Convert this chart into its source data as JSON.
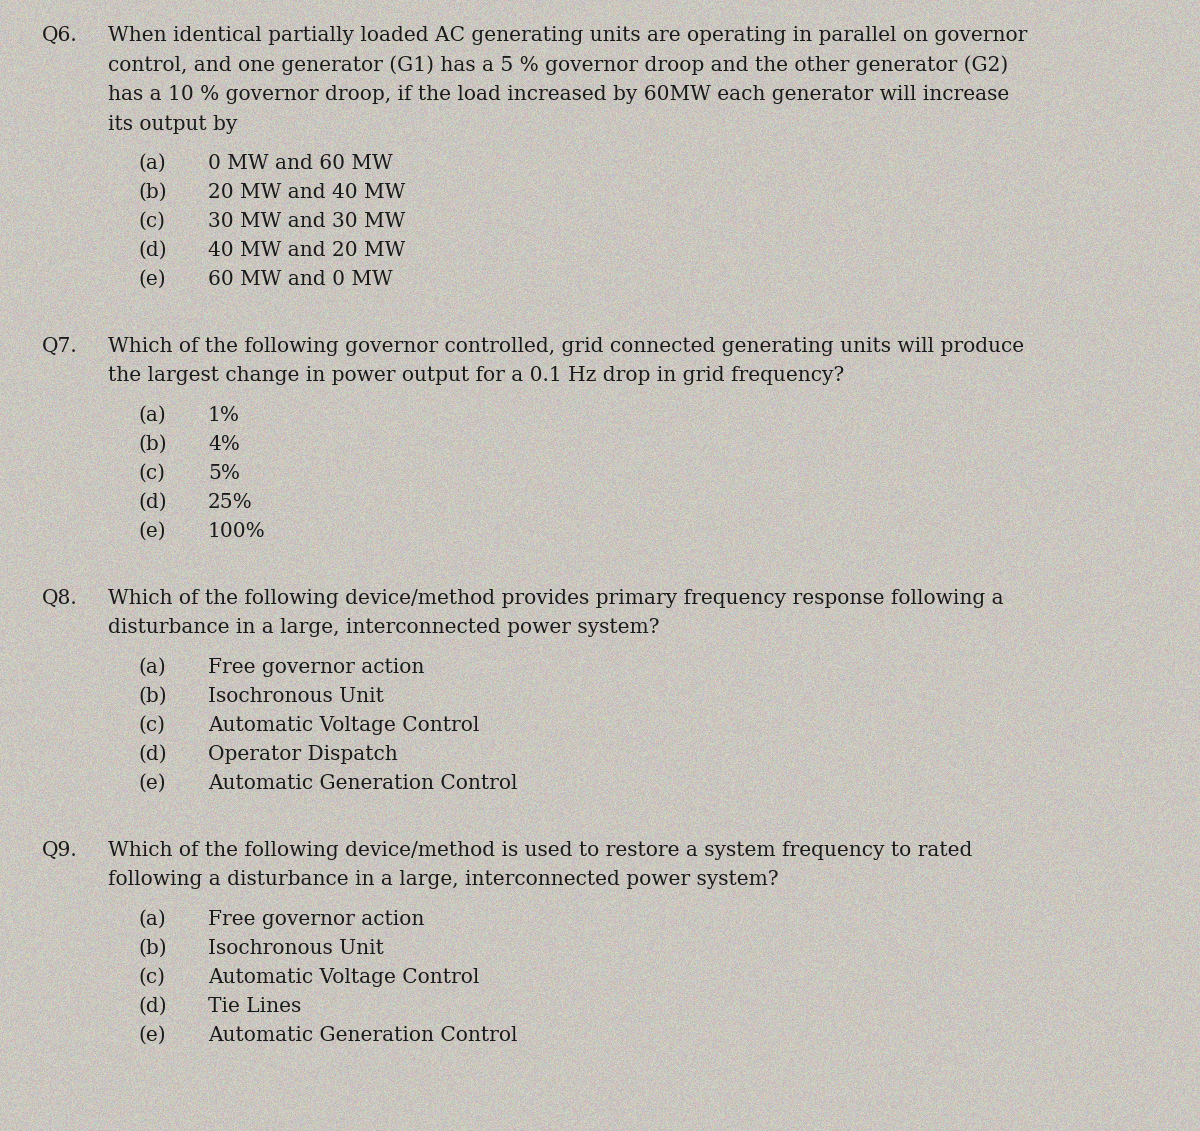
{
  "background_color": "#cbc7c0",
  "text_color": "#1a1a1a",
  "font_size": 14.5,
  "questions": [
    {
      "number": "Q6.",
      "text": "When identical partially loaded AC generating units are operating in parallel on governor\ncontrol, and one generator (G1) has a 5 % governor droop and the other generator (G2)\nhas a 10 % governor droop, if the load increased by 60MW each generator will increase\nits output by",
      "options": [
        {
          "label": "(a)",
          "text": "0 MW and 60 MW"
        },
        {
          "label": "(b)",
          "text": "20 MW and 40 MW"
        },
        {
          "label": "(c)",
          "text": "30 MW and 30 MW"
        },
        {
          "label": "(d)",
          "text": "40 MW and 20 MW"
        },
        {
          "label": "(e)",
          "text": "60 MW and 0 MW"
        }
      ]
    },
    {
      "number": "Q7.",
      "text": "Which of the following governor controlled, grid connected generating units will produce\nthe largest change in power output for a 0.1 Hz drop in grid frequency?",
      "options": [
        {
          "label": "(a)",
          "text": "1%"
        },
        {
          "label": "(b)",
          "text": "4%"
        },
        {
          "label": "(c)",
          "text": "5%"
        },
        {
          "label": "(d)",
          "text": "25%"
        },
        {
          "label": "(e)",
          "text": "100%"
        }
      ]
    },
    {
      "number": "Q8.",
      "text": "Which of the following device/method provides primary frequency response following a\ndisturbance in a large, interconnected power system?",
      "options": [
        {
          "label": "(a)",
          "text": "Free governor action"
        },
        {
          "label": "(b)",
          "text": "Isochronous Unit"
        },
        {
          "label": "(c)",
          "text": "Automatic Voltage Control"
        },
        {
          "label": "(d)",
          "text": "Operator Dispatch"
        },
        {
          "label": "(e)",
          "text": "Automatic Generation Control"
        }
      ]
    },
    {
      "number": "Q9.",
      "text": "Which of the following device/method is used to restore a system frequency to rated\nfollowing a disturbance in a large, interconnected power system?",
      "options": [
        {
          "label": "(a)",
          "text": "Free governor action"
        },
        {
          "label": "(b)",
          "text": "Isochronous Unit"
        },
        {
          "label": "(c)",
          "text": "Automatic Voltage Control"
        },
        {
          "label": "(d)",
          "text": "Tie Lines"
        },
        {
          "label": "(e)",
          "text": "Automatic Generation Control"
        }
      ]
    }
  ],
  "noise_seed": 42,
  "noise_intensity": 18
}
